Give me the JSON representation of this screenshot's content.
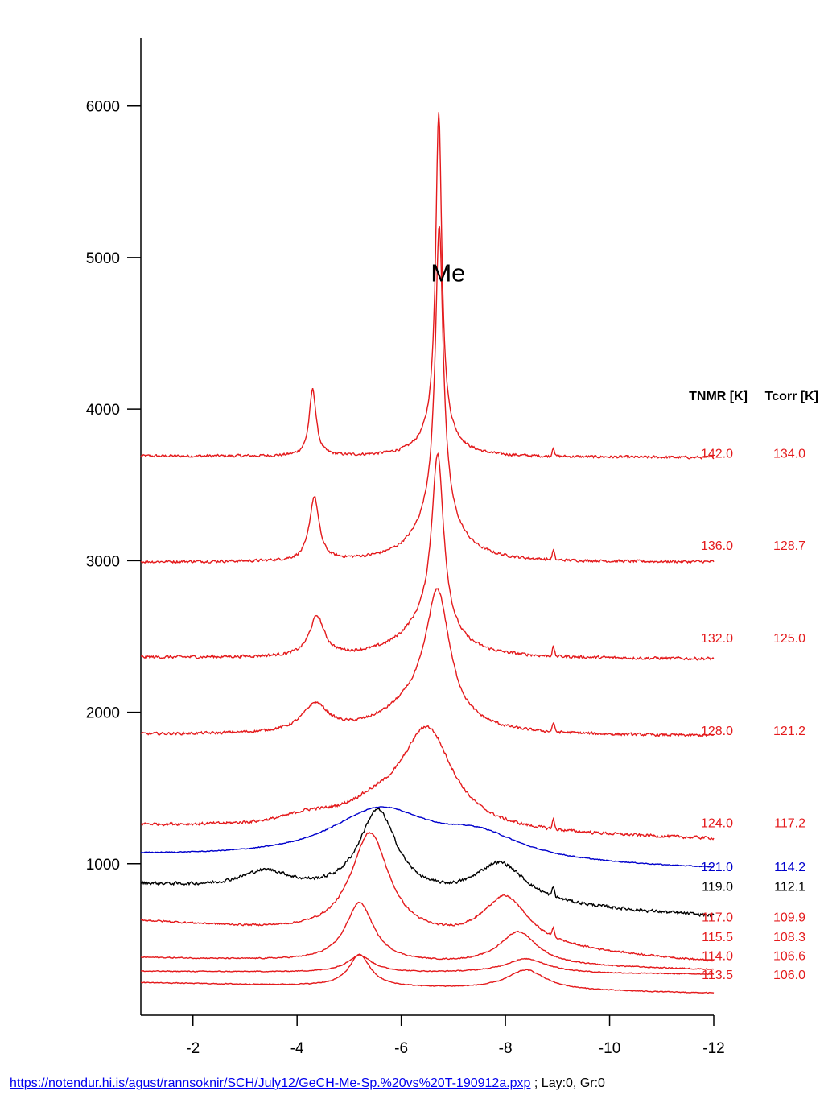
{
  "chart_data": {
    "type": "line",
    "title": "",
    "xlabel": "",
    "ylabel": "",
    "x_reversed": true,
    "xlim": [
      -1,
      -12
    ],
    "ylim": [
      0,
      6450
    ],
    "x_ticks": [
      -2,
      -4,
      -6,
      -8,
      -10,
      -12
    ],
    "y_ticks": [
      1000,
      2000,
      3000,
      4000,
      5000,
      6000
    ],
    "grid": false,
    "annotations": [
      {
        "text": "Me",
        "x": -6.9,
        "y": 4900
      }
    ],
    "legend_header": {
      "tnmr": "TNMR [K]",
      "tcorr": "Tcorr [K]"
    },
    "series": [
      {
        "tnmr": "142.0",
        "tcorr": "134.0",
        "color": "#e41a1c",
        "baseline_start": 3690,
        "baseline_end": 3680,
        "peaks": [
          [
            -4.3,
            440,
            0.08
          ],
          [
            -6.72,
            2100,
            0.07
          ],
          [
            -6.72,
            180,
            0.35
          ]
        ],
        "noise": 12,
        "label_y": 3680
      },
      {
        "tnmr": "136.0",
        "tcorr": "128.7",
        "color": "#e41a1c",
        "baseline_start": 2990,
        "baseline_end": 2990,
        "peaks": [
          [
            -4.33,
            420,
            0.11
          ],
          [
            -6.73,
            1870,
            0.09
          ],
          [
            -6.7,
            350,
            0.45
          ]
        ],
        "noise": 12,
        "label_y": 3070
      },
      {
        "tnmr": "132.0",
        "tcorr": "125.0",
        "color": "#e41a1c",
        "baseline_start": 2360,
        "baseline_end": 2350,
        "peaks": [
          [
            -4.38,
            260,
            0.17
          ],
          [
            -6.7,
            1150,
            0.14
          ],
          [
            -6.5,
            220,
            0.6
          ]
        ],
        "noise": 13,
        "label_y": 2460
      },
      {
        "tnmr": "128.0",
        "tcorr": "121.2",
        "color": "#e41a1c",
        "baseline_start": 1850,
        "baseline_end": 1840,
        "peaks": [
          [
            -4.35,
            180,
            0.3
          ],
          [
            -6.7,
            820,
            0.28
          ],
          [
            -6.3,
            180,
            0.8
          ]
        ],
        "noise": 12,
        "label_y": 1850
      },
      {
        "tnmr": "124.0",
        "tcorr": "117.2",
        "color": "#e41a1c",
        "baseline_start": 1250,
        "baseline_end": 1160,
        "peaks": [
          [
            -4.2,
            60,
            0.6
          ],
          [
            -6.5,
            650,
            0.6
          ],
          [
            -5.5,
            120,
            0.8
          ]
        ],
        "noise": 13,
        "label_y": 1240
      },
      {
        "tnmr": "121.0",
        "tcorr": "114.2",
        "color": "#0000cc",
        "baseline_start": 1050,
        "baseline_end": 960,
        "peaks": [
          [
            -5.6,
            330,
            1.2
          ],
          [
            -7.5,
            150,
            1.0
          ]
        ],
        "noise": 4,
        "label_y": 950
      },
      {
        "tnmr": "119.0",
        "tcorr": "112.1",
        "color": "#000000",
        "baseline_start": 860,
        "baseline_end": 650,
        "peaks": [
          [
            -5.55,
            560,
            0.45
          ],
          [
            -7.9,
            260,
            0.6
          ],
          [
            -3.4,
            120,
            0.6
          ]
        ],
        "noise": 14,
        "label_y": 820
      },
      {
        "tnmr": "117.0",
        "tcorr": "109.9",
        "color": "#e41a1c",
        "baseline_start": 620,
        "baseline_end": 350,
        "peaks": [
          [
            -5.4,
            680,
            0.45
          ],
          [
            -8.0,
            320,
            0.55
          ]
        ],
        "noise": 8,
        "label_y": 620
      },
      {
        "tnmr": "115.5",
        "tcorr": "108.3",
        "color": "#e41a1c",
        "baseline_start": 380,
        "baseline_end": 300,
        "peaks": [
          [
            -5.2,
            390,
            0.33
          ],
          [
            -8.25,
            220,
            0.45
          ]
        ],
        "noise": 5,
        "label_y": 490
      },
      {
        "tnmr": "114.0",
        "tcorr": "106.6",
        "color": "#e41a1c",
        "baseline_start": 290,
        "baseline_end": 270,
        "peaks": [
          [
            -5.2,
            110,
            0.3
          ],
          [
            -8.4,
            95,
            0.5
          ]
        ],
        "noise": 4,
        "label_y": 365
      },
      {
        "tnmr": "113.5",
        "tcorr": "106.0",
        "color": "#e41a1c",
        "baseline_start": 215,
        "baseline_end": 145,
        "peaks": [
          [
            -5.2,
            210,
            0.25
          ],
          [
            -8.4,
            130,
            0.45
          ]
        ],
        "noise": 4,
        "label_y": 240
      }
    ]
  },
  "footer": {
    "link_text": "https://notendur.hi.is/agust/rannsoknir/SCH/July12/GeCH-Me-Sp.%20vs%20T-190912a.pxp",
    "suffix": " ; Lay:0, Gr:0"
  }
}
